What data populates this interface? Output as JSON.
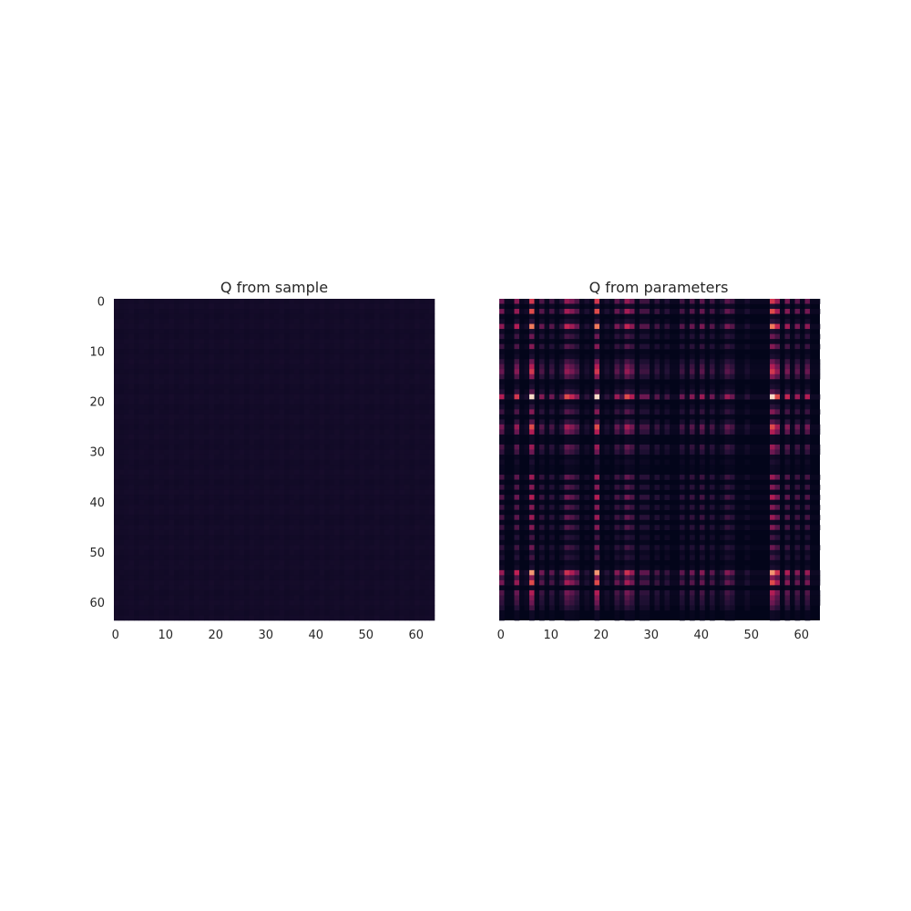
{
  "chart_data": [
    {
      "type": "heatmap",
      "title": "Q from sample",
      "rows": 64,
      "cols": 64,
      "x_ticks": [
        0,
        10,
        20,
        30,
        40,
        50,
        60
      ],
      "y_ticks": [
        0,
        10,
        20,
        30,
        40,
        50,
        60
      ],
      "x_tick_labels": [
        "0",
        "10",
        "20",
        "30",
        "40",
        "50",
        "60"
      ],
      "y_tick_labels": [
        "0",
        "10",
        "20",
        "30",
        "40",
        "50",
        "60"
      ],
      "colormap": "rocket",
      "background_color": "#160f29",
      "description_values": "near-uniform very low values with faint row/column striping"
    },
    {
      "type": "heatmap",
      "title": "Q from parameters",
      "rows": 64,
      "cols": 64,
      "x_ticks": [
        0,
        10,
        20,
        30,
        40,
        50,
        60
      ],
      "x_tick_labels": [
        "0",
        "10",
        "20",
        "30",
        "40",
        "50",
        "60"
      ],
      "y_ticks": [],
      "colormap": "rocket",
      "background_color": "#03051a",
      "row_weights": [
        0.55,
        0.1,
        0.6,
        0.05,
        0.15,
        0.7,
        0.1,
        0.3,
        0.05,
        0.35,
        0.05,
        0.1,
        0.3,
        0.45,
        0.55,
        0.35,
        0.05,
        0.1,
        0.25,
        0.85,
        0.05,
        0.15,
        0.35,
        0.05,
        0.25,
        0.6,
        0.45,
        0.05,
        0.05,
        0.4,
        0.3,
        0.05,
        0.1,
        0.05,
        0.05,
        0.4,
        0.05,
        0.35,
        0.05,
        0.45,
        0.05,
        0.35,
        0.05,
        0.4,
        0.05,
        0.35,
        0.05,
        0.2,
        0.05,
        0.3,
        0.1,
        0.2,
        0.05,
        0.1,
        0.75,
        0.35,
        0.6,
        0.05,
        0.45,
        0.35,
        0.3,
        0.2,
        0.05,
        0.05
      ],
      "col_weights": [
        0.45,
        0.05,
        0.05,
        0.55,
        0.05,
        0.1,
        0.85,
        0.05,
        0.35,
        0.05,
        0.3,
        0.05,
        0.2,
        0.6,
        0.5,
        0.35,
        0.05,
        0.15,
        0.05,
        0.85,
        0.05,
        0.15,
        0.05,
        0.4,
        0.2,
        0.6,
        0.45,
        0.05,
        0.3,
        0.3,
        0.05,
        0.25,
        0.05,
        0.2,
        0.05,
        0.05,
        0.3,
        0.05,
        0.35,
        0.05,
        0.4,
        0.05,
        0.3,
        0.05,
        0.15,
        0.4,
        0.3,
        0.05,
        0.05,
        0.15,
        0.05,
        0.05,
        0.05,
        0.05,
        0.85,
        0.6,
        0.05,
        0.5,
        0.05,
        0.4,
        0.05,
        0.45,
        0.05,
        0.05
      ]
    }
  ]
}
